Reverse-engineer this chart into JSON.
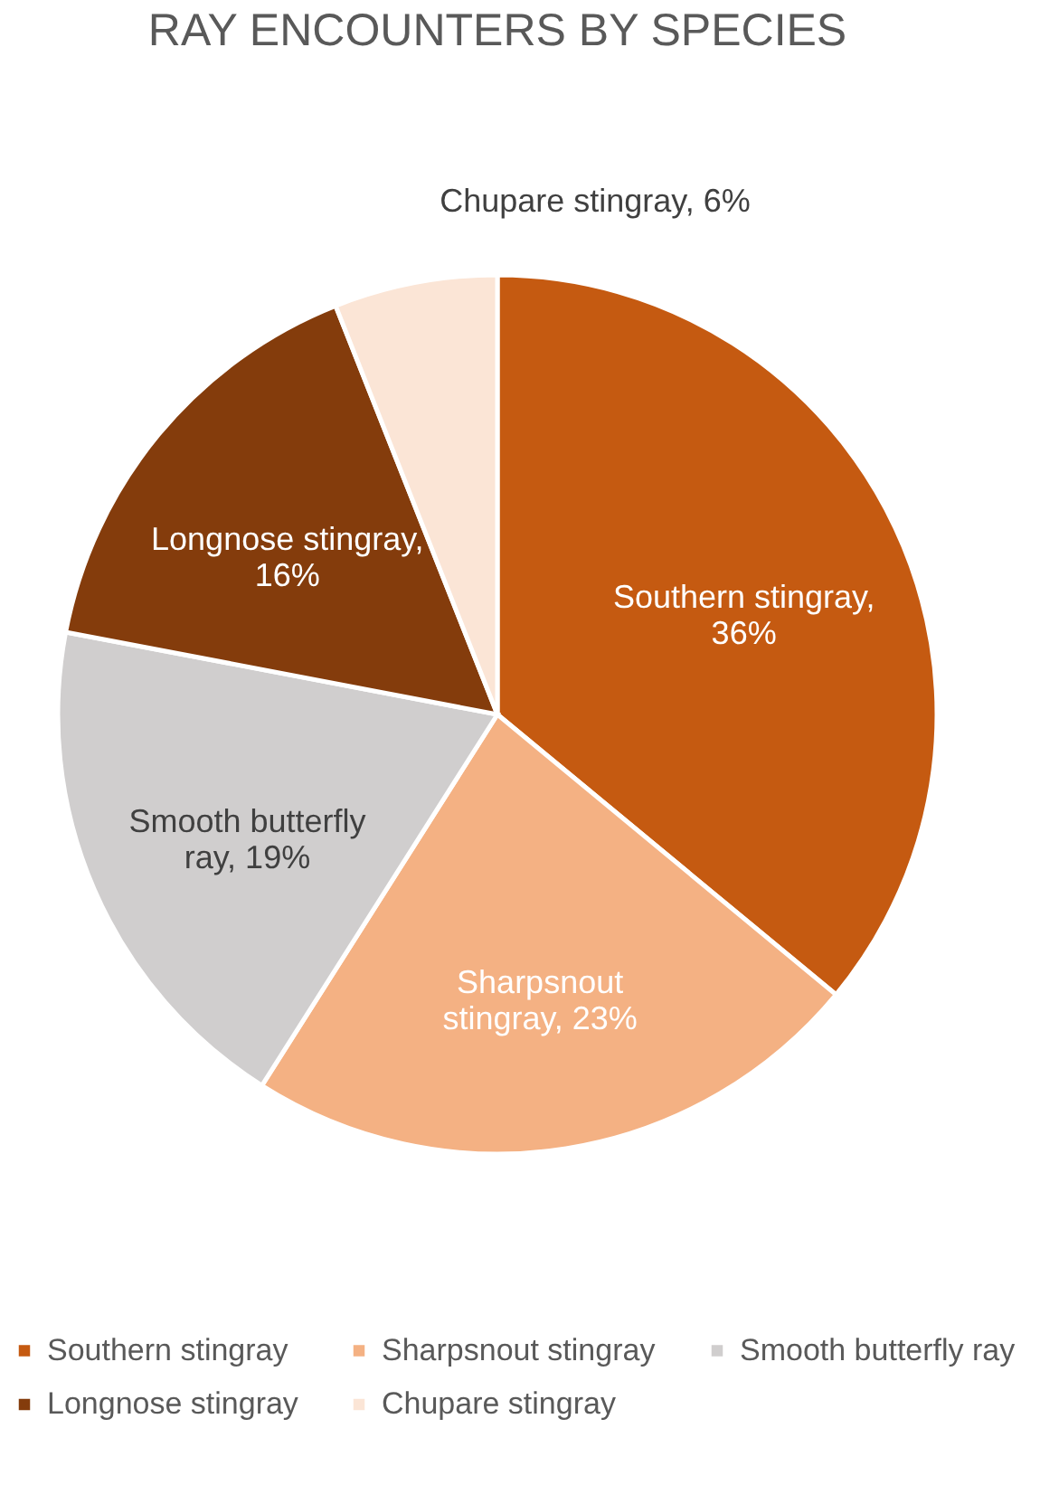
{
  "chart_data": {
    "type": "pie",
    "title": "RAY ENCOUNTERS BY SPECIES",
    "categories": [
      "Southern stingray",
      "Sharpsnout stingray",
      "Smooth butterfly ray",
      "Longnose stingray",
      "Chupare stingray"
    ],
    "values": [
      36,
      23,
      19,
      16,
      6
    ],
    "colors": [
      "#c55a11",
      "#f4b183",
      "#d0cece",
      "#843c0c",
      "#fbe5d6"
    ],
    "value_labels": [
      "Southern stingray, 36%",
      "Sharpsnout stingray, 23%",
      "Smooth butterfly ray, 19%",
      "Longnose stingray, 16%",
      "Chupare stingray, 6%"
    ],
    "legend": "bottom"
  }
}
